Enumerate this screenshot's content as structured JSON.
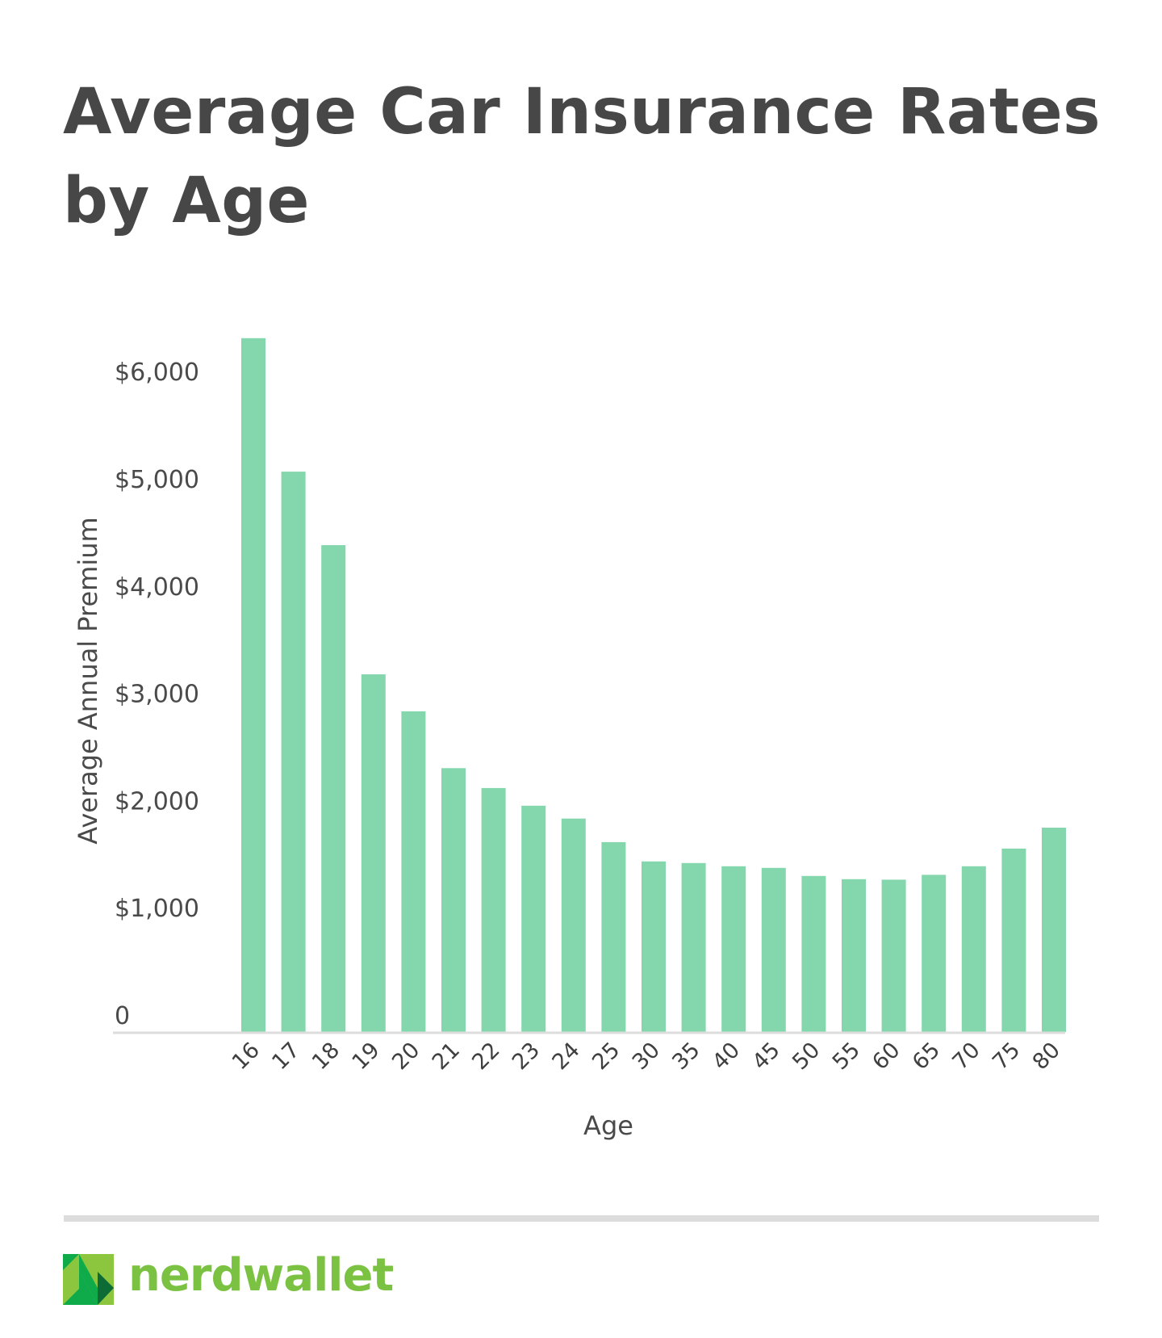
{
  "page": {
    "title": "Average Car Insurance Rates by Age",
    "brand": {
      "name": "nerdwallet",
      "logo_icon": "nerdwallet-n-logo-icon",
      "text_color": "#7cc242",
      "logo_colors": [
        "#0fab4b",
        "#8cc63f",
        "#0d6b35"
      ]
    },
    "divider_color": "#dcdcdc"
  },
  "chart_data": {
    "type": "bar",
    "title": "Average Car Insurance Rates by Age",
    "xlabel": "Age",
    "ylabel": "Average Annual Premium",
    "categories": [
      "16",
      "17",
      "18",
      "19",
      "20",
      "21",
      "22",
      "23",
      "24",
      "25",
      "30",
      "35",
      "40",
      "45",
      "50",
      "55",
      "60",
      "65",
      "70",
      "75",
      "80"
    ],
    "values": [
      6470,
      5225,
      4540,
      3335,
      2990,
      2460,
      2275,
      2110,
      1990,
      1770,
      1590,
      1575,
      1545,
      1530,
      1455,
      1425,
      1420,
      1465,
      1545,
      1710,
      1905
    ],
    "ylim": [
      0,
      6500
    ],
    "yticks": [
      0,
      1000,
      2000,
      3000,
      4000,
      5000,
      6000
    ],
    "ytick_labels": [
      "0",
      "$1,000",
      "$2,000",
      "$3,000",
      "$4,000",
      "$5,000",
      "$6,000"
    ],
    "xtick_rotation_deg": -45,
    "grid": false,
    "legend": "none",
    "bar_color": "#84d7ac",
    "axis_color": "#dddddd",
    "text_color": "#474747"
  }
}
